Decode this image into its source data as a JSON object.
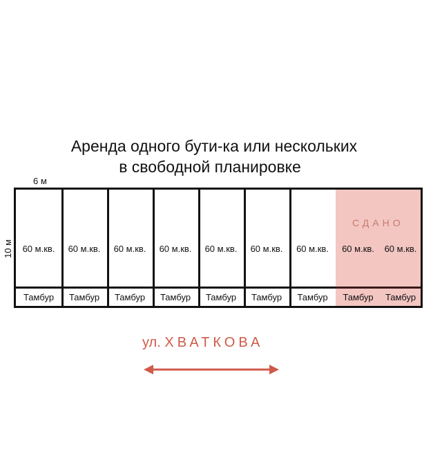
{
  "title_line1": "Аренда одного бути-ка или нескольких",
  "title_line2": "в свободной планировке",
  "width_label": "6 м",
  "height_label": "10 м",
  "rented_label": "СДАНО",
  "units": [
    {
      "area": "60 м.кв.",
      "vestibule": "Тамбур",
      "rented": false
    },
    {
      "area": "60 м.кв.",
      "vestibule": "Тамбур",
      "rented": false
    },
    {
      "area": "60 м.кв.",
      "vestibule": "Тамбур",
      "rented": false
    },
    {
      "area": "60 м.кв.",
      "vestibule": "Тамбур",
      "rented": false
    },
    {
      "area": "60 м.кв.",
      "vestibule": "Тамбур",
      "rented": false
    },
    {
      "area": "60 м.кв.",
      "vestibule": "Тамбур",
      "rented": false
    },
    {
      "area": "60 м.кв.",
      "vestibule": "Тамбур",
      "rented": false
    },
    {
      "area": "60 м.кв.",
      "vestibule": "Тамбур",
      "rented": true
    },
    {
      "area": "60 м.кв.",
      "vestibule": "Тамбур",
      "rented": true
    }
  ],
  "street_prefix": "ул.",
  "street_name": "ХВАТКОВА",
  "colors": {
    "rented_fill": "#f3c6c2",
    "street": "#cf5a49"
  }
}
